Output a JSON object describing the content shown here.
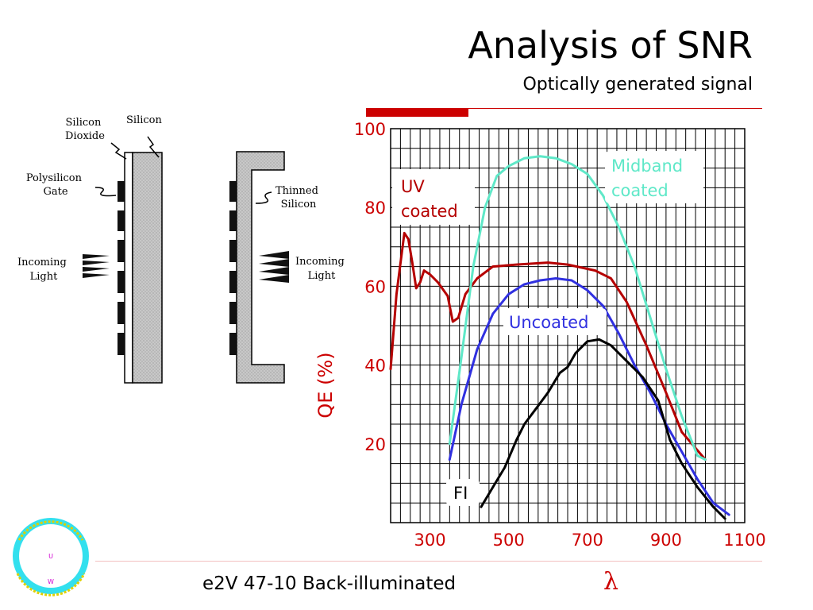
{
  "slide": {
    "title": "Analysis of SNR",
    "subtitle": "Optically generated signal",
    "footer": "e2V 47-10 Back-illuminated",
    "x_symbol": "λ",
    "accent_color": "#cc0000"
  },
  "diagram": {
    "labels": {
      "silicon_dioxide": [
        "Silicon",
        "Dioxide"
      ],
      "silicon": "Silicon",
      "polysilicon_gate": [
        "Polysilicon",
        "Gate"
      ],
      "incoming_light_left": [
        "Incoming",
        "Light"
      ],
      "thinned_silicon": [
        "Thinned",
        "Silicon"
      ],
      "incoming_light_right": [
        "Incoming",
        "Light"
      ]
    }
  },
  "logo": {
    "letters": [
      "U",
      "W"
    ],
    "ring_color": "#33e0ee",
    "text_color": "#e0d000"
  },
  "chart_data": {
    "type": "line",
    "ylabel": "QE (%)",
    "xlabel": "λ",
    "xlim": [
      200,
      1100
    ],
    "ylim": [
      0,
      100
    ],
    "x_ticks": [
      300,
      500,
      700,
      900,
      1100
    ],
    "y_ticks": [
      20,
      40,
      60,
      80,
      100
    ],
    "grid": true,
    "series": [
      {
        "name": "UV coated",
        "color": "#b50000",
        "label": [
          "UV",
          "coated"
        ],
        "points": [
          [
            200,
            39
          ],
          [
            215,
            58
          ],
          [
            235,
            73.5
          ],
          [
            245,
            72
          ],
          [
            255,
            66
          ],
          [
            265,
            59.5
          ],
          [
            275,
            61
          ],
          [
            285,
            64
          ],
          [
            300,
            63
          ],
          [
            320,
            61
          ],
          [
            345,
            57.5
          ],
          [
            358,
            51
          ],
          [
            372,
            52
          ],
          [
            390,
            58
          ],
          [
            420,
            62
          ],
          [
            460,
            65
          ],
          [
            520,
            65.5
          ],
          [
            600,
            66
          ],
          [
            650,
            65.5
          ],
          [
            720,
            64
          ],
          [
            760,
            62
          ],
          [
            800,
            56
          ],
          [
            850,
            45
          ],
          [
            900,
            33
          ],
          [
            940,
            23
          ],
          [
            1000,
            16
          ]
        ]
      },
      {
        "name": "Midband coated",
        "color": "#5fe8c8",
        "label": [
          "Midband",
          "coated"
        ],
        "points": [
          [
            350,
            20
          ],
          [
            380,
            42
          ],
          [
            410,
            65
          ],
          [
            440,
            80
          ],
          [
            470,
            88
          ],
          [
            500,
            90.5
          ],
          [
            540,
            92.5
          ],
          [
            580,
            93
          ],
          [
            620,
            92.5
          ],
          [
            660,
            91
          ],
          [
            700,
            88.5
          ],
          [
            740,
            83
          ],
          [
            780,
            75
          ],
          [
            820,
            65
          ],
          [
            860,
            52
          ],
          [
            900,
            39
          ],
          [
            940,
            27
          ],
          [
            980,
            17
          ],
          [
            1000,
            16
          ]
        ]
      },
      {
        "name": "Uncoated",
        "color": "#3030e0",
        "label": [
          "Uncoated"
        ],
        "points": [
          [
            350,
            16
          ],
          [
            380,
            30
          ],
          [
            420,
            44
          ],
          [
            460,
            53
          ],
          [
            500,
            58
          ],
          [
            540,
            60.5
          ],
          [
            580,
            61.5
          ],
          [
            620,
            62
          ],
          [
            660,
            61.5
          ],
          [
            700,
            59
          ],
          [
            740,
            55
          ],
          [
            780,
            48
          ],
          [
            820,
            40
          ],
          [
            860,
            33
          ],
          [
            900,
            25
          ],
          [
            940,
            18
          ],
          [
            980,
            11
          ],
          [
            1020,
            5
          ],
          [
            1060,
            2
          ]
        ]
      },
      {
        "name": "FI",
        "color": "#000000",
        "label": [
          "FI"
        ],
        "points": [
          [
            430,
            4
          ],
          [
            460,
            9
          ],
          [
            490,
            14
          ],
          [
            520,
            21
          ],
          [
            540,
            25
          ],
          [
            570,
            29
          ],
          [
            600,
            33
          ],
          [
            630,
            38
          ],
          [
            650,
            39.5
          ],
          [
            670,
            43
          ],
          [
            700,
            46
          ],
          [
            730,
            46.5
          ],
          [
            760,
            45
          ],
          [
            800,
            41
          ],
          [
            840,
            37
          ],
          [
            880,
            31
          ],
          [
            910,
            21
          ],
          [
            940,
            15
          ],
          [
            980,
            9
          ],
          [
            1020,
            4
          ],
          [
            1050,
            1
          ]
        ]
      }
    ]
  }
}
